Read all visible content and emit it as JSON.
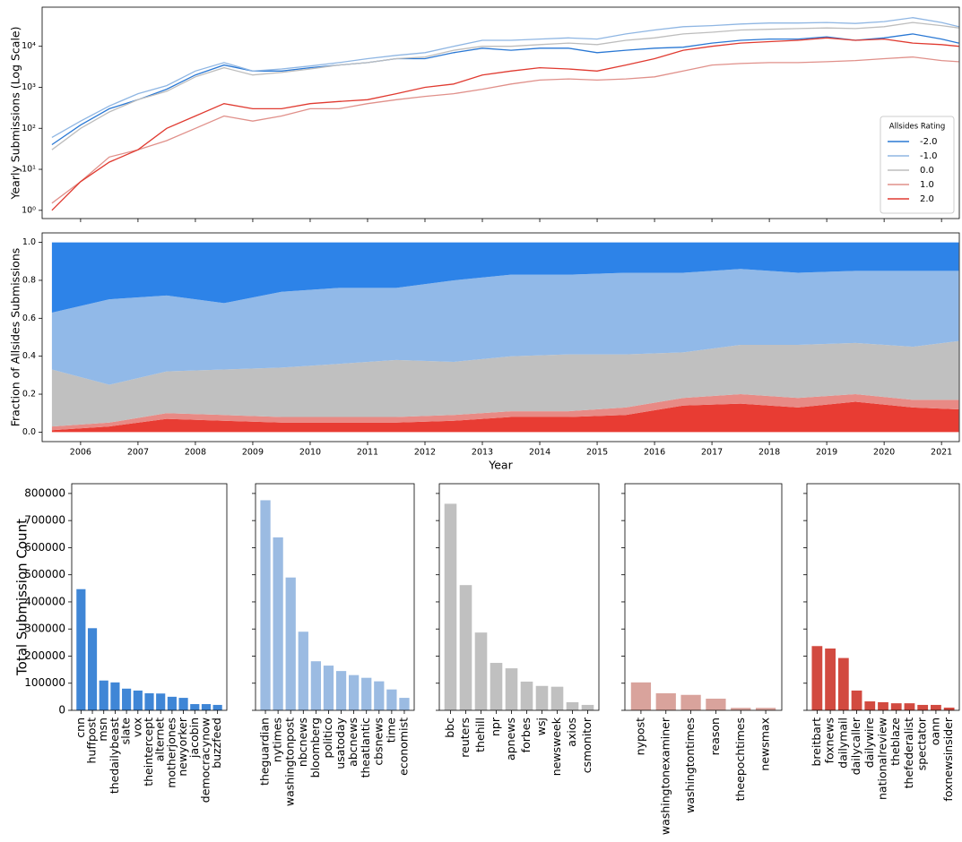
{
  "chart_data": [
    {
      "type": "line",
      "ylabel": "Yearly Submissions (Log Scale)",
      "yscale": "log",
      "x": [
        2005.5,
        2006,
        2006.5,
        2007,
        2007.5,
        2008,
        2008.5,
        2009,
        2009.5,
        2010,
        2010.5,
        2011,
        2011.5,
        2012,
        2012.5,
        2013,
        2013.5,
        2014,
        2014.5,
        2015,
        2015.5,
        2016,
        2016.5,
        2017,
        2017.5,
        2018,
        2018.5,
        2019,
        2019.5,
        2020,
        2020.5,
        2021,
        2021.3
      ],
      "xlim": [
        2005.33,
        2021.31
      ],
      "ylim": [
        0.63,
        90000
      ],
      "yticks": [
        {
          "value": 1,
          "label": "10⁰"
        },
        {
          "value": 10,
          "label": "10¹"
        },
        {
          "value": 100,
          "label": "10²"
        },
        {
          "value": 1000,
          "label": "10³"
        },
        {
          "value": 10000,
          "label": "10⁴"
        }
      ],
      "legend_title": "Allsides Rating",
      "legend": "lower right",
      "series": [
        {
          "name": "-2.0",
          "color": "#2a78d4",
          "values": [
            40,
            120,
            300,
            500,
            900,
            2000,
            3500,
            2500,
            2500,
            3000,
            3500,
            4000,
            5000,
            5000,
            7000,
            9000,
            8000,
            9000,
            9000,
            7000,
            8000,
            9000,
            9500,
            12000,
            14000,
            15000,
            15000,
            17000,
            14000,
            16000,
            20000,
            15000,
            12000
          ]
        },
        {
          "name": "-1.0",
          "color": "#8fb6e3",
          "values": [
            60,
            150,
            350,
            700,
            1100,
            2500,
            4000,
            2500,
            2800,
            3300,
            4000,
            5000,
            6000,
            7000,
            10000,
            14000,
            14000,
            15000,
            16000,
            15000,
            20000,
            25000,
            30000,
            32000,
            35000,
            37000,
            37000,
            38000,
            36000,
            40000,
            50000,
            38000,
            30000
          ]
        },
        {
          "name": "0.0",
          "color": "#bdbdbd",
          "values": [
            30,
            100,
            250,
            500,
            800,
            1800,
            3000,
            2000,
            2300,
            2800,
            3500,
            4000,
            5000,
            5500,
            8000,
            10000,
            10000,
            11000,
            12000,
            11000,
            14000,
            16000,
            20000,
            22000,
            25000,
            26000,
            27000,
            28000,
            27000,
            30000,
            38000,
            32000,
            28000
          ]
        },
        {
          "name": "1.0",
          "color": "#e0908a",
          "values": [
            1.5,
            5,
            20,
            30,
            50,
            100,
            200,
            150,
            200,
            300,
            300,
            400,
            500,
            600,
            700,
            900,
            1200,
            1500,
            1600,
            1500,
            1600,
            1800,
            2500,
            3500,
            3800,
            4000,
            4000,
            4200,
            4500,
            5000,
            5500,
            4500,
            4200
          ]
        },
        {
          "name": "2.0",
          "color": "#e03a30",
          "values": [
            1,
            5,
            15,
            30,
            100,
            200,
            400,
            300,
            300,
            400,
            450,
            500,
            700,
            1000,
            1200,
            2000,
            2500,
            3000,
            2800,
            2500,
            3500,
            5000,
            8000,
            10000,
            12000,
            13000,
            14000,
            16000,
            14000,
            15000,
            12000,
            11000,
            10000
          ]
        }
      ]
    },
    {
      "type": "area",
      "ylabel": "Fraction of Allsides Submissions",
      "xlabel": "Year",
      "x": [
        2005.5,
        2006.5,
        2007.5,
        2008.5,
        2009.5,
        2010.5,
        2011.5,
        2012.5,
        2013.5,
        2014.5,
        2015.5,
        2016.5,
        2017.5,
        2018.5,
        2019.5,
        2020.5,
        2021.3
      ],
      "xlim": [
        2005.33,
        2021.31
      ],
      "ylim": [
        -0.05,
        1.05
      ],
      "xticks": [
        2006,
        2007,
        2008,
        2009,
        2010,
        2011,
        2012,
        2013,
        2014,
        2015,
        2016,
        2017,
        2018,
        2019,
        2020,
        2021
      ],
      "yticks": [
        {
          "value": 0,
          "label": "0.0"
        },
        0.2,
        0.4,
        0.6,
        0.8,
        {
          "value": 1,
          "label": "1.0"
        }
      ],
      "series": [
        {
          "color": "#e83c33",
          "values": [
            0.01,
            0.03,
            0.07,
            0.06,
            0.05,
            0.05,
            0.05,
            0.06,
            0.08,
            0.08,
            0.09,
            0.14,
            0.15,
            0.13,
            0.16,
            0.13,
            0.12
          ]
        },
        {
          "color": "#e88a85",
          "values": [
            0.02,
            0.02,
            0.03,
            0.03,
            0.03,
            0.03,
            0.03,
            0.03,
            0.03,
            0.03,
            0.04,
            0.04,
            0.05,
            0.05,
            0.04,
            0.04,
            0.05
          ]
        },
        {
          "color": "#c0c0c0",
          "values": [
            0.3,
            0.2,
            0.22,
            0.24,
            0.26,
            0.28,
            0.3,
            0.28,
            0.29,
            0.3,
            0.28,
            0.24,
            0.26,
            0.28,
            0.27,
            0.28,
            0.31
          ]
        },
        {
          "color": "#91b9e8",
          "values": [
            0.3,
            0.45,
            0.4,
            0.35,
            0.4,
            0.4,
            0.38,
            0.43,
            0.43,
            0.42,
            0.43,
            0.42,
            0.4,
            0.38,
            0.38,
            0.4,
            0.37
          ]
        },
        {
          "color": "#2d83e8",
          "values": [
            0.37,
            0.3,
            0.28,
            0.32,
            0.26,
            0.24,
            0.24,
            0.2,
            0.17,
            0.17,
            0.16,
            0.16,
            0.14,
            0.16,
            0.15,
            0.15,
            0.15
          ]
        }
      ]
    },
    {
      "type": "bar",
      "ylabel": "Total Submission Count",
      "color": "#3f86d6",
      "ylim": [
        0,
        836000
      ],
      "yticks": [
        0,
        100000,
        200000,
        300000,
        400000,
        500000,
        600000,
        700000,
        800000
      ],
      "categories": [
        "cnn",
        "huffpost",
        "msn",
        "thedailybeast",
        "slate",
        "vox",
        "theintercept",
        "alternet",
        "motherjones",
        "newyorker",
        "jacobin",
        "democracynow",
        "buzzfeed"
      ],
      "values": [
        447000,
        303000,
        110000,
        103000,
        80000,
        73000,
        63000,
        62000,
        50000,
        46000,
        23000,
        23000,
        20000
      ]
    },
    {
      "type": "bar",
      "color": "#9bbbe2",
      "ylim": [
        0,
        836000
      ],
      "categories": [
        "theguardian",
        "nytimes",
        "washingtonpost",
        "nbcnews",
        "bloomberg",
        "politico",
        "usatoday",
        "abcnews",
        "theatlantic",
        "cbsnews",
        "time",
        "economist"
      ],
      "values": [
        775000,
        638000,
        490000,
        290000,
        181000,
        165000,
        145000,
        130000,
        120000,
        107000,
        77000,
        46000
      ]
    },
    {
      "type": "bar",
      "color": "#c0c0c0",
      "ylim": [
        0,
        836000
      ],
      "categories": [
        "bbc",
        "reuters",
        "thehill",
        "npr",
        "apnews",
        "forbes",
        "wsj",
        "newsweek",
        "axios",
        "csmonitor"
      ],
      "values": [
        762000,
        462000,
        287000,
        175000,
        155000,
        106000,
        90000,
        87000,
        30000,
        20000
      ]
    },
    {
      "type": "bar",
      "color": "#d9a39c",
      "ylim": [
        0,
        836000
      ],
      "categories": [
        "nypost",
        "washingtonexaminer",
        "washingtontimes",
        "reason",
        "theepochtimes",
        "newsmax"
      ],
      "values": [
        103000,
        63000,
        57000,
        43000,
        9000,
        9000
      ]
    },
    {
      "type": "bar",
      "color": "#d24a40",
      "ylim": [
        0,
        836000
      ],
      "categories": [
        "breitbart",
        "foxnews",
        "dailymail",
        "dailycaller",
        "dailywire",
        "nationalreview",
        "theblaze",
        "thefederalist",
        "spectator",
        "oann",
        "foxnewsinsider"
      ],
      "values": [
        237000,
        228000,
        193000,
        73000,
        33000,
        30000,
        26000,
        26000,
        20000,
        20000,
        10000
      ]
    }
  ]
}
